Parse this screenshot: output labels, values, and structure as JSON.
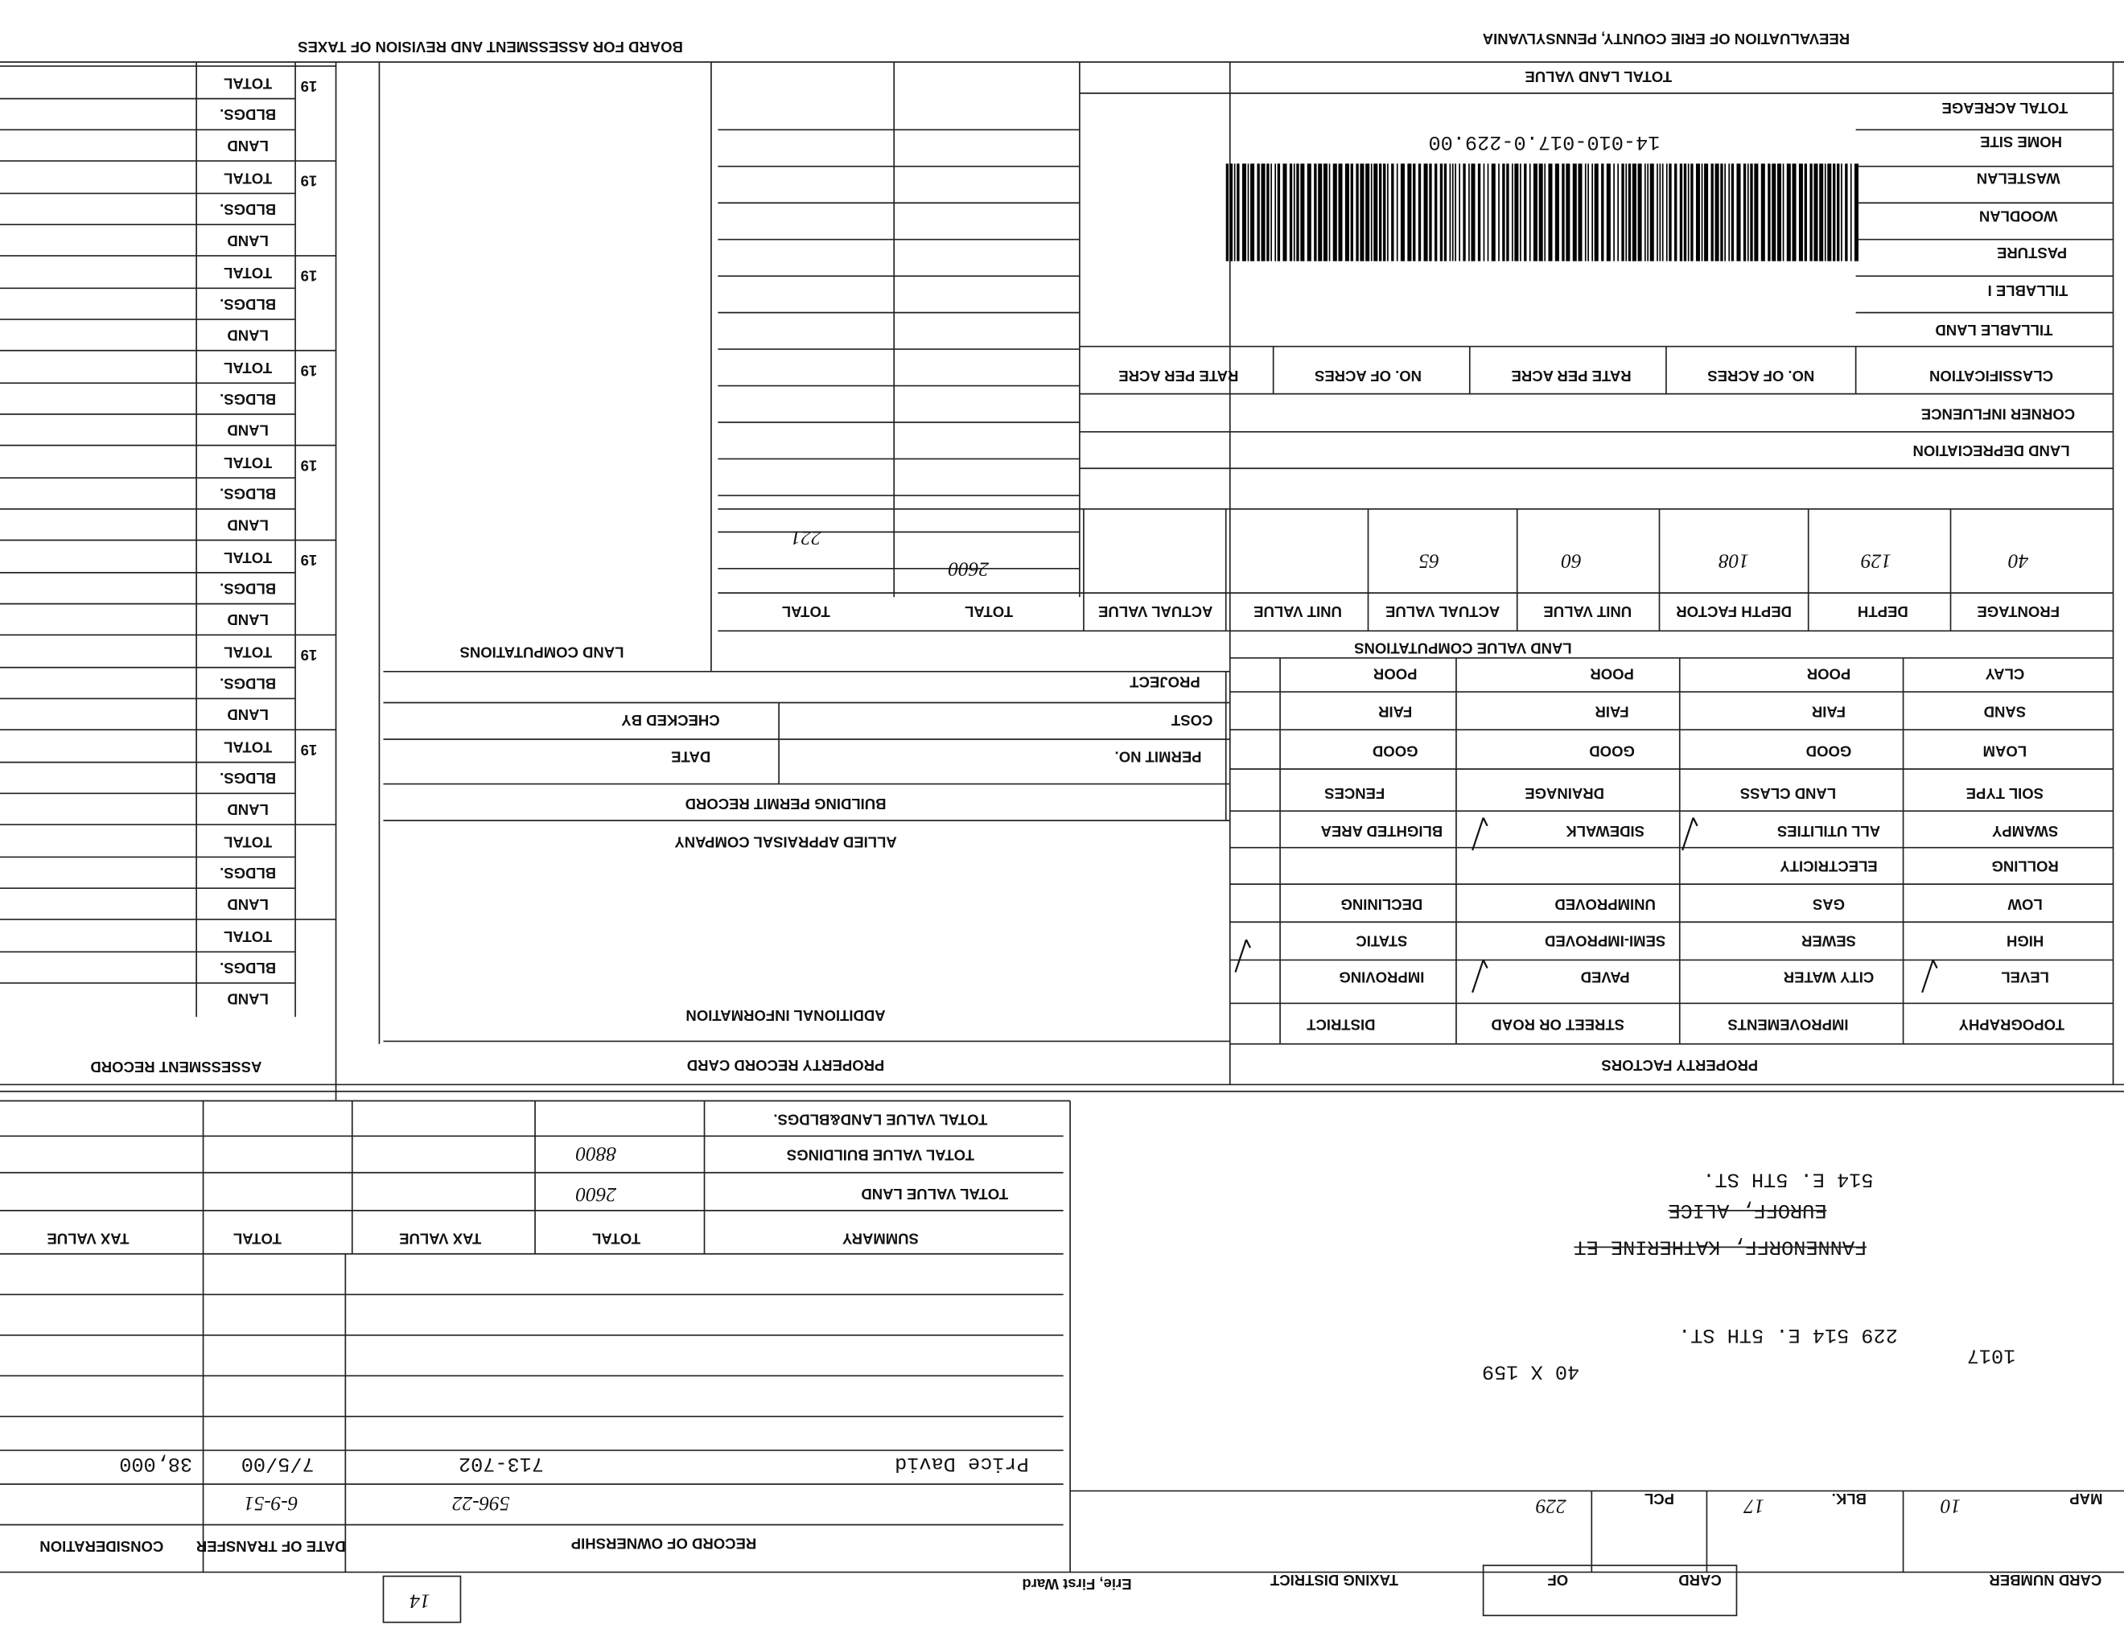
{
  "header": {
    "county": "REEVALUATION OF ERIE COUNTY, PENNSYLVANIA",
    "board": "BOARD FOR ASSESSMENT AND REVISION OF TAXES"
  },
  "parcel_id": "14-010-017.0-229.00",
  "acreage": {
    "total_land_value": "TOTAL LAND VALUE",
    "labels": [
      "TOTAL ACREAGE",
      "HOME SITE",
      "WASTELAN",
      "WOODLAN",
      "PASTURE",
      "TILLABLE I",
      "TILLABLE LAND"
    ],
    "columns": [
      "CLASSIFICATION",
      "NO. OF ACRES",
      "RATE PER ACRE",
      "NO. OF ACRES",
      "RATE PER ACRE"
    ],
    "corner_influence": "CORNER INFLUENCE",
    "land_depreciation": "LAND DEPRECIATION"
  },
  "land_value": {
    "title": "LAND VALUE COMPUTATIONS",
    "columns": [
      "FRONTAGE",
      "DEPTH",
      "DEPTH FACTOR",
      "UNIT VALUE",
      "ACTUAL VALUE",
      "UNIT VALUE",
      "ACTUAL VALUE",
      "TOTAL",
      "TOTAL"
    ],
    "entries": [
      "40",
      "129",
      "108",
      "60",
      "65",
      "2600",
      "221"
    ]
  },
  "land_computations": "LAND COMPUTATIONS",
  "soil": {
    "columns": [
      "SOIL TYPE",
      "LAND CLASS",
      "DRAINAGE",
      "FENCES"
    ],
    "soil_types": [
      "LOAM",
      "SAND",
      "CLAY"
    ],
    "grades": [
      "GOOD",
      "FAIR",
      "POOR"
    ]
  },
  "property_factors": {
    "title": "PROPERTY FACTORS",
    "columns": [
      "TOPOGRAPHY",
      "IMPROVEMENTS",
      "STREET OR ROAD",
      "DISTRICT"
    ],
    "topography": [
      "LEVEL",
      "HIGH",
      "LOW",
      "ROLLING",
      "SWAMPY"
    ],
    "improvements": [
      "CITY WATER",
      "SEWER",
      "GAS",
      "ELECTRICITY",
      "ALL UTILITIES"
    ],
    "street": [
      "PAVED",
      "SEMI-IMPROVED",
      "UNIMPROVED",
      "SIDEWALK"
    ],
    "district": [
      "IMPROVING",
      "STATIC",
      "DECLINING",
      "BLIGHTED AREA"
    ]
  },
  "permit": {
    "title": "BUILDING PERMIT RECORD",
    "permit_no": "PERMIT NO.",
    "date": "DATE",
    "cost": "COST",
    "checked_by": "CHECKED BY",
    "project": "PROJECT"
  },
  "additional": {
    "company": "ALLIED APPRAISAL COMPANY",
    "title": "ADDITIONAL INFORMATION"
  },
  "card_title": "PROPERTY RECORD CARD",
  "assessment": {
    "title": "ASSESSMENT RECORD",
    "year": "19",
    "row_labels": [
      "TOTAL",
      "BLDGS.",
      "LAND"
    ]
  },
  "summary": {
    "columns": [
      "SUMMARY",
      "TOTAL",
      "TAX VALUE",
      "TOTAL",
      "TAX VALUE"
    ],
    "rows": [
      "TOTAL VALUE LAND&BLDGS.",
      "TOTAL VALUE BUILDINGS",
      "TOTAL VALUE LAND"
    ],
    "entries": [
      "8800",
      "2600"
    ]
  },
  "ownership": {
    "title": "RECORD OF OWNERSHIP",
    "date_label": "DATE OF TRANSFER",
    "consideration_label": "CONSIDERATION",
    "rows": [
      [
        "Price David",
        "713-702",
        "7/5/00",
        "38,000"
      ],
      [
        "596-22",
        "6-9-51"
      ]
    ]
  },
  "address": {
    "lines": [
      "1017",
      "229 514 E. 5TH ST.",
      "40 X 159"
    ],
    "struck": [
      "FANNENORFF, KATHERINE ET",
      "EUROFF, ALICE"
    ],
    "current": "514 E. 5TH ST."
  },
  "footer": {
    "card_number": "CARD NUMBER",
    "card": "CARD",
    "of": "OF",
    "taxing_district": "TAXING DISTRICT",
    "district": "Erie, First Ward",
    "map_label": "MAP",
    "map": "10",
    "blk_label": "BLK.",
    "blk": "17",
    "pcl_label": "PCL",
    "pcl": "229",
    "stamp": "14"
  }
}
